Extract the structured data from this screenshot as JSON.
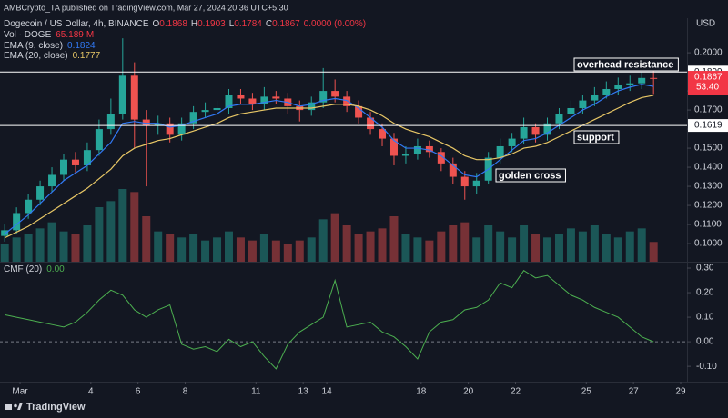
{
  "header": {
    "publisher": "AMBCrypto_TA published on TradingView.com, Mar 27, 2024 20:36 UTC+5:30"
  },
  "footer": {
    "brand": "TradingView"
  },
  "chart_data": [
    {
      "type": "candlestick",
      "title": "Dogecoin / US Dollar, 4h, BINANCE",
      "y_unit": "USD",
      "ohlc_labels": [
        "O",
        "H",
        "L",
        "C"
      ],
      "change_label": "0.0000 (0.00%)",
      "up_color": "#26a69a",
      "down_color": "#ef5350",
      "grid": false,
      "xlim": [
        0.15,
        29.27
      ],
      "ylim": [
        0.0905,
        0.211
      ],
      "yticks": [
        {
          "value": 0.1,
          "label": "0.1000"
        },
        {
          "value": 0.11,
          "label": "0.1100"
        },
        {
          "value": 0.12,
          "label": "0.1200"
        },
        {
          "value": 0.13,
          "label": "0.1300"
        },
        {
          "value": 0.14,
          "label": "0.1400"
        },
        {
          "value": 0.15,
          "label": "0.1500"
        },
        {
          "value": 0.16,
          "label": "0.1600"
        },
        {
          "value": 0.17,
          "label": "0.1700"
        },
        {
          "value": 0.18,
          "label": "0.1800"
        },
        {
          "value": 0.19,
          "label": "0.1900"
        },
        {
          "value": 0.2,
          "label": "0.2000"
        }
      ],
      "x": [
        0.35,
        0.85,
        1.35,
        1.85,
        2.35,
        2.85,
        3.35,
        3.85,
        4.35,
        4.85,
        5.35,
        5.85,
        6.35,
        6.85,
        7.35,
        7.85,
        8.35,
        8.85,
        9.35,
        9.85,
        10.35,
        10.85,
        11.35,
        11.85,
        12.35,
        12.85,
        13.35,
        13.85,
        14.35,
        14.85,
        15.35,
        15.85,
        16.35,
        16.85,
        17.35,
        17.85,
        18.35,
        18.85,
        19.35,
        19.85,
        20.35,
        20.85,
        21.35,
        21.85,
        22.35,
        22.85,
        23.35,
        23.85,
        24.35,
        24.85,
        25.35,
        25.85,
        26.35,
        26.85,
        27.35,
        27.85
      ],
      "open": [
        0.104,
        0.107,
        0.116,
        0.123,
        0.13,
        0.136,
        0.144,
        0.141,
        0.149,
        0.16,
        0.168,
        0.188,
        0.165,
        0.162,
        0.163,
        0.157,
        0.163,
        0.169,
        0.17,
        0.171,
        0.178,
        0.176,
        0.173,
        0.177,
        0.176,
        0.172,
        0.17,
        0.174,
        0.18,
        0.177,
        0.172,
        0.166,
        0.16,
        0.155,
        0.146,
        0.147,
        0.151,
        0.148,
        0.142,
        0.135,
        0.13,
        0.133,
        0.145,
        0.151,
        0.155,
        0.161,
        0.157,
        0.163,
        0.168,
        0.171,
        0.175,
        0.178,
        0.181,
        0.183,
        0.184,
        0.1868
      ],
      "high": [
        0.11,
        0.119,
        0.126,
        0.133,
        0.14,
        0.147,
        0.148,
        0.153,
        0.165,
        0.176,
        0.2076,
        0.195,
        0.17,
        0.167,
        0.166,
        0.166,
        0.172,
        0.174,
        0.175,
        0.181,
        0.181,
        0.179,
        0.182,
        0.18,
        0.179,
        0.175,
        0.177,
        0.192,
        0.186,
        0.18,
        0.175,
        0.169,
        0.163,
        0.158,
        0.151,
        0.155,
        0.154,
        0.15,
        0.145,
        0.138,
        0.137,
        0.148,
        0.155,
        0.158,
        0.166,
        0.163,
        0.166,
        0.171,
        0.175,
        0.178,
        0.182,
        0.185,
        0.187,
        0.188,
        0.19,
        0.1903
      ],
      "low": [
        0.101,
        0.105,
        0.113,
        0.12,
        0.127,
        0.133,
        0.137,
        0.138,
        0.146,
        0.157,
        0.165,
        0.15,
        0.13,
        0.157,
        0.153,
        0.154,
        0.16,
        0.166,
        0.167,
        0.168,
        0.173,
        0.17,
        0.17,
        0.173,
        0.168,
        0.164,
        0.167,
        0.171,
        0.174,
        0.169,
        0.163,
        0.157,
        0.151,
        0.141,
        0.142,
        0.144,
        0.145,
        0.138,
        0.131,
        0.123,
        0.126,
        0.131,
        0.142,
        0.148,
        0.152,
        0.153,
        0.154,
        0.16,
        0.165,
        0.168,
        0.172,
        0.176,
        0.178,
        0.18,
        0.181,
        0.1784
      ],
      "close": [
        0.107,
        0.116,
        0.123,
        0.13,
        0.136,
        0.144,
        0.141,
        0.149,
        0.16,
        0.168,
        0.188,
        0.165,
        0.162,
        0.163,
        0.157,
        0.163,
        0.169,
        0.17,
        0.171,
        0.178,
        0.176,
        0.173,
        0.177,
        0.176,
        0.172,
        0.17,
        0.174,
        0.18,
        0.177,
        0.172,
        0.166,
        0.16,
        0.155,
        0.146,
        0.147,
        0.151,
        0.148,
        0.142,
        0.135,
        0.13,
        0.133,
        0.145,
        0.151,
        0.155,
        0.161,
        0.157,
        0.163,
        0.168,
        0.171,
        0.175,
        0.178,
        0.181,
        0.183,
        0.184,
        0.1868,
        0.1867
      ],
      "volume": {
        "name": "Vol · DOGE",
        "unit": "M",
        "values": [
          60,
          80,
          90,
          110,
          130,
          100,
          90,
          120,
          180,
          200,
          240,
          230,
          150,
          100,
          90,
          80,
          90,
          70,
          80,
          100,
          80,
          70,
          90,
          70,
          60,
          70,
          80,
          140,
          160,
          120,
          90,
          100,
          110,
          150,
          90,
          80,
          70,
          100,
          120,
          130,
          80,
          120,
          100,
          80,
          120,
          90,
          80,
          90,
          110,
          100,
          120,
          90,
          80,
          100,
          110,
          65.189
        ]
      },
      "series": [
        {
          "name": "EMA (9, close)",
          "color": "#3179f5",
          "values": [
            0.105,
            0.11,
            0.115,
            0.121,
            0.127,
            0.133,
            0.137,
            0.141,
            0.147,
            0.153,
            0.163,
            0.164,
            0.163,
            0.163,
            0.161,
            0.162,
            0.164,
            0.166,
            0.168,
            0.172,
            0.173,
            0.173,
            0.174,
            0.175,
            0.174,
            0.172,
            0.173,
            0.175,
            0.176,
            0.175,
            0.171,
            0.166,
            0.161,
            0.154,
            0.15,
            0.15,
            0.149,
            0.146,
            0.141,
            0.136,
            0.135,
            0.139,
            0.144,
            0.149,
            0.154,
            0.155,
            0.158,
            0.162,
            0.166,
            0.17,
            0.173,
            0.177,
            0.18,
            0.182,
            0.1835,
            0.1824
          ]
        },
        {
          "name": "EMA (20, close)",
          "color": "#e8c766",
          "values": [
            0.103,
            0.106,
            0.109,
            0.113,
            0.117,
            0.121,
            0.125,
            0.129,
            0.134,
            0.139,
            0.146,
            0.15,
            0.152,
            0.154,
            0.155,
            0.157,
            0.159,
            0.161,
            0.163,
            0.166,
            0.168,
            0.169,
            0.17,
            0.171,
            0.171,
            0.171,
            0.171,
            0.172,
            0.173,
            0.173,
            0.172,
            0.17,
            0.167,
            0.163,
            0.16,
            0.158,
            0.156,
            0.153,
            0.15,
            0.146,
            0.144,
            0.144,
            0.145,
            0.147,
            0.15,
            0.151,
            0.153,
            0.156,
            0.159,
            0.162,
            0.165,
            0.168,
            0.171,
            0.174,
            0.1765,
            0.1777
          ]
        }
      ],
      "hlines": [
        {
          "value": 0.1899,
          "label": "0.1899"
        },
        {
          "value": 0.1619,
          "label": "0.1619"
        }
      ],
      "last_price_countdown": "53:40",
      "annotations": [
        "overhead resistance",
        "support",
        "golden cross"
      ]
    },
    {
      "type": "line",
      "name": "CMF (20)",
      "color": "#4caf50",
      "last_value_label": "0.00",
      "grid": false,
      "zero_line": true,
      "x": [
        0.35,
        0.85,
        1.35,
        1.85,
        2.35,
        2.85,
        3.35,
        3.85,
        4.35,
        4.85,
        5.35,
        5.85,
        6.35,
        6.85,
        7.35,
        7.85,
        8.35,
        8.85,
        9.35,
        9.85,
        10.35,
        10.85,
        11.35,
        11.85,
        12.35,
        12.85,
        13.35,
        13.85,
        14.35,
        14.85,
        15.35,
        15.85,
        16.35,
        16.85,
        17.35,
        17.85,
        18.35,
        18.85,
        19.35,
        19.85,
        20.35,
        20.85,
        21.35,
        21.85,
        22.35,
        22.85,
        23.35,
        23.85,
        24.35,
        24.85,
        25.35,
        25.85,
        26.35,
        26.85,
        27.35,
        27.85
      ],
      "values": [
        0.11,
        0.1,
        0.09,
        0.08,
        0.07,
        0.06,
        0.08,
        0.12,
        0.17,
        0.21,
        0.19,
        0.13,
        0.1,
        0.13,
        0.15,
        -0.01,
        -0.03,
        -0.02,
        -0.04,
        0.01,
        -0.02,
        0.0,
        -0.06,
        -0.11,
        -0.01,
        0.04,
        0.07,
        0.1,
        0.25,
        0.06,
        0.07,
        0.08,
        0.04,
        0.02,
        -0.02,
        -0.07,
        0.04,
        0.08,
        0.09,
        0.13,
        0.14,
        0.17,
        0.24,
        0.22,
        0.29,
        0.26,
        0.27,
        0.23,
        0.19,
        0.17,
        0.14,
        0.12,
        0.1,
        0.06,
        0.02,
        0.0
      ],
      "xlim": [
        0.15,
        29.27
      ],
      "xticks": [
        {
          "value": 1,
          "label": "Mar"
        },
        4,
        6,
        8,
        11,
        13,
        14,
        18,
        20,
        22,
        25,
        27,
        29
      ],
      "ylim": [
        -0.155,
        0.326
      ],
      "yticks": [
        {
          "value": 0.3,
          "label": "0.30"
        },
        {
          "value": 0.2,
          "label": "0.20"
        },
        {
          "value": 0.1,
          "label": "0.10"
        },
        {
          "value": 0,
          "label": "0.00"
        },
        {
          "value": -0.1,
          "label": "-0.10"
        }
      ]
    }
  ]
}
